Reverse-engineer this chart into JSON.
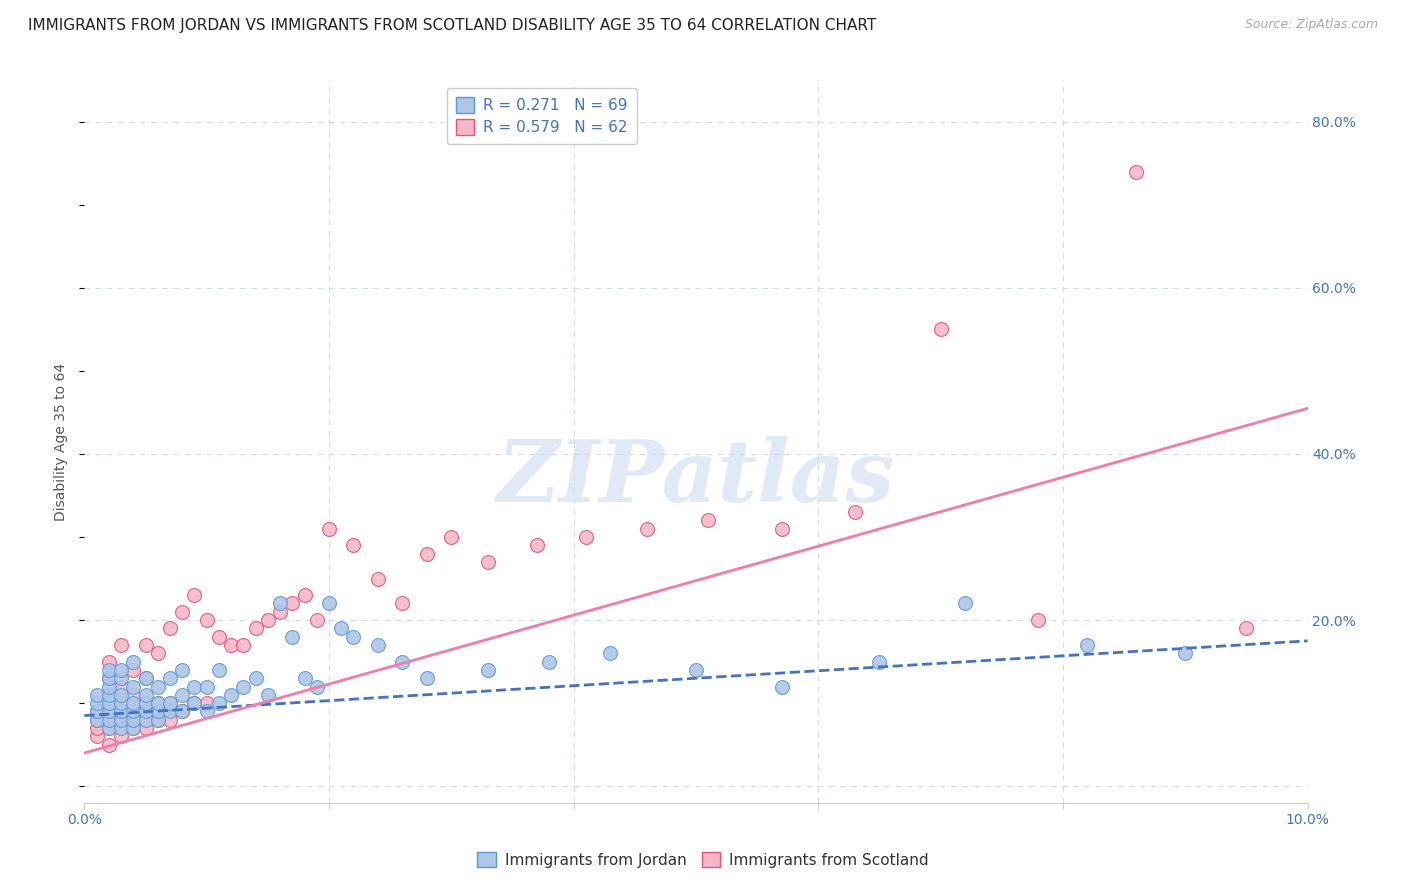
{
  "title": "IMMIGRANTS FROM JORDAN VS IMMIGRANTS FROM SCOTLAND DISABILITY AGE 35 TO 64 CORRELATION CHART",
  "source": "Source: ZipAtlas.com",
  "ylabel": "Disability Age 35 to 64",
  "xlim": [
    0.0,
    0.1
  ],
  "ylim": [
    -0.02,
    0.85
  ],
  "xticks": [
    0.0,
    0.02,
    0.04,
    0.06,
    0.08,
    0.1
  ],
  "xticklabels": [
    "0.0%",
    "",
    "",
    "",
    "",
    "10.0%"
  ],
  "yticks_right": [
    0.0,
    0.2,
    0.4,
    0.6,
    0.8
  ],
  "yticklabels_right": [
    "",
    "20.0%",
    "40.0%",
    "60.0%",
    "80.0%"
  ],
  "jordan_color": "#aec6e8",
  "jordan_edge_color": "#5b9bd5",
  "scotland_color": "#f4b8c8",
  "scotland_edge_color": "#e8537a",
  "jordan_line_color": "#4472c4",
  "scotland_line_color": "#f47caa",
  "R_jordan": 0.271,
  "N_jordan": 69,
  "R_scotland": 0.579,
  "N_scotland": 62,
  "legend_label_jordan": "Immigrants from Jordan",
  "legend_label_scotland": "Immigrants from Scotland",
  "jordan_trend_x0": 0.0,
  "jordan_trend_y0": 0.085,
  "jordan_trend_x1": 0.1,
  "jordan_trend_y1": 0.175,
  "scotland_trend_x0": 0.0,
  "scotland_trend_y0": 0.04,
  "scotland_trend_x1": 0.1,
  "scotland_trend_y1": 0.455,
  "jordan_scatter_x": [
    0.001,
    0.001,
    0.001,
    0.001,
    0.002,
    0.002,
    0.002,
    0.002,
    0.002,
    0.002,
    0.002,
    0.002,
    0.003,
    0.003,
    0.003,
    0.003,
    0.003,
    0.003,
    0.003,
    0.004,
    0.004,
    0.004,
    0.004,
    0.004,
    0.004,
    0.005,
    0.005,
    0.005,
    0.005,
    0.005,
    0.006,
    0.006,
    0.006,
    0.006,
    0.007,
    0.007,
    0.007,
    0.008,
    0.008,
    0.008,
    0.009,
    0.009,
    0.01,
    0.01,
    0.011,
    0.011,
    0.012,
    0.013,
    0.014,
    0.015,
    0.016,
    0.017,
    0.018,
    0.019,
    0.02,
    0.021,
    0.022,
    0.024,
    0.026,
    0.028,
    0.033,
    0.038,
    0.043,
    0.05,
    0.057,
    0.065,
    0.072,
    0.082,
    0.09
  ],
  "jordan_scatter_y": [
    0.08,
    0.09,
    0.1,
    0.11,
    0.07,
    0.08,
    0.09,
    0.1,
    0.11,
    0.12,
    0.13,
    0.14,
    0.07,
    0.08,
    0.09,
    0.1,
    0.11,
    0.13,
    0.14,
    0.07,
    0.08,
    0.09,
    0.1,
    0.12,
    0.15,
    0.08,
    0.09,
    0.1,
    0.11,
    0.13,
    0.08,
    0.09,
    0.1,
    0.12,
    0.09,
    0.1,
    0.13,
    0.09,
    0.11,
    0.14,
    0.1,
    0.12,
    0.09,
    0.12,
    0.1,
    0.14,
    0.11,
    0.12,
    0.13,
    0.11,
    0.22,
    0.18,
    0.13,
    0.12,
    0.22,
    0.19,
    0.18,
    0.17,
    0.15,
    0.13,
    0.14,
    0.15,
    0.16,
    0.14,
    0.12,
    0.15,
    0.22,
    0.17,
    0.16
  ],
  "scotland_scatter_x": [
    0.001,
    0.001,
    0.001,
    0.001,
    0.002,
    0.002,
    0.002,
    0.002,
    0.002,
    0.002,
    0.002,
    0.003,
    0.003,
    0.003,
    0.003,
    0.003,
    0.004,
    0.004,
    0.004,
    0.004,
    0.005,
    0.005,
    0.005,
    0.005,
    0.006,
    0.006,
    0.006,
    0.007,
    0.007,
    0.007,
    0.008,
    0.008,
    0.009,
    0.009,
    0.01,
    0.01,
    0.011,
    0.012,
    0.013,
    0.014,
    0.015,
    0.016,
    0.017,
    0.018,
    0.019,
    0.02,
    0.022,
    0.024,
    0.026,
    0.028,
    0.03,
    0.033,
    0.037,
    0.041,
    0.046,
    0.051,
    0.057,
    0.063,
    0.07,
    0.078,
    0.086,
    0.095
  ],
  "scotland_scatter_y": [
    0.06,
    0.07,
    0.08,
    0.09,
    0.05,
    0.07,
    0.08,
    0.09,
    0.11,
    0.13,
    0.15,
    0.06,
    0.08,
    0.1,
    0.12,
    0.17,
    0.07,
    0.09,
    0.11,
    0.14,
    0.07,
    0.09,
    0.13,
    0.17,
    0.08,
    0.1,
    0.16,
    0.08,
    0.1,
    0.19,
    0.09,
    0.21,
    0.1,
    0.23,
    0.1,
    0.2,
    0.18,
    0.17,
    0.17,
    0.19,
    0.2,
    0.21,
    0.22,
    0.23,
    0.2,
    0.31,
    0.29,
    0.25,
    0.22,
    0.28,
    0.3,
    0.27,
    0.29,
    0.3,
    0.31,
    0.32,
    0.31,
    0.33,
    0.55,
    0.2,
    0.74,
    0.19
  ],
  "watermark_text": "ZIPatlas",
  "background_color": "#ffffff",
  "grid_color": "#d3dce8",
  "title_color": "#222222",
  "source_color": "#aaaaaa",
  "tick_color": "#4472c4",
  "ylabel_color": "#555555",
  "title_fontsize": 11,
  "axis_label_fontsize": 10,
  "tick_fontsize": 10,
  "legend_fontsize": 11,
  "source_fontsize": 9
}
